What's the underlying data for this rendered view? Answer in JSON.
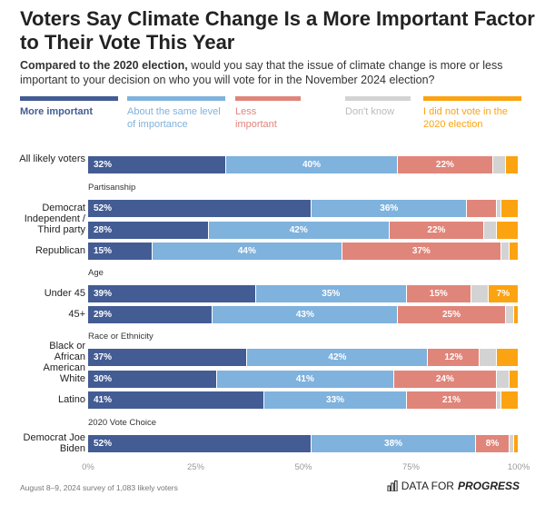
{
  "title": "Voters Say Climate Change Is a More Important Factor to Their Vote This Year",
  "subtitle_bold": "Compared to the 2020 election,",
  "subtitle_rest": " would you say that the issue of climate change is more or less important to your decision on who you will vote for in the November 2024 election?",
  "footer": "August 8–9, 2024 survey of 1,083 likely voters",
  "logo": {
    "text1": "DATA FOR",
    "text2": "PROGRESS",
    "icon": "bar-chart-icon"
  },
  "chart_data": {
    "type": "bar",
    "orientation": "horizontal",
    "stacked": true,
    "title": "Voters Say Climate Change Is a More Important Factor to Their Vote This Year",
    "xlim": [
      0,
      100
    ],
    "xticks": [
      "0%",
      "25%",
      "50%",
      "75%",
      "100%"
    ],
    "legend_position": "top",
    "series": [
      {
        "name": "More important",
        "color": "#435c94"
      },
      {
        "name": "About the same level of importance",
        "color": "#7fb2dd"
      },
      {
        "name": "Less important",
        "color": "#e0857a"
      },
      {
        "name": "Don't know",
        "color": "#d3d3d3"
      },
      {
        "name": "I did not vote in the 2020 election",
        "color": "#fca311"
      }
    ],
    "rows": [
      {
        "group": null,
        "label": "All likely voters",
        "values": [
          32,
          40,
          22,
          3,
          3
        ],
        "labels": [
          "32%",
          "40%",
          "22%",
          "",
          ""
        ]
      },
      {
        "group": "Partisanship",
        "label": "Democrat",
        "values": [
          52,
          36,
          7,
          1,
          4
        ],
        "labels": [
          "52%",
          "36%",
          "",
          "",
          ""
        ]
      },
      {
        "group": null,
        "label": "Independent / Third party",
        "values": [
          28,
          42,
          22,
          3,
          5
        ],
        "labels": [
          "28%",
          "42%",
          "22%",
          "",
          ""
        ]
      },
      {
        "group": null,
        "label": "Republican",
        "values": [
          15,
          44,
          37,
          2,
          2
        ],
        "labels": [
          "15%",
          "44%",
          "37%",
          "",
          ""
        ]
      },
      {
        "group": "Age",
        "label": "Under 45",
        "values": [
          39,
          35,
          15,
          4,
          7
        ],
        "labels": [
          "39%",
          "35%",
          "15%",
          "",
          "7%"
        ]
      },
      {
        "group": null,
        "label": "45+",
        "values": [
          29,
          43,
          25,
          2,
          1
        ],
        "labels": [
          "29%",
          "43%",
          "25%",
          "",
          ""
        ]
      },
      {
        "group": "Race or Ethnicity",
        "label": "Black or African American",
        "values": [
          37,
          42,
          12,
          4,
          5
        ],
        "labels": [
          "37%",
          "42%",
          "12%",
          "",
          ""
        ]
      },
      {
        "group": null,
        "label": "White",
        "values": [
          30,
          41,
          24,
          3,
          2
        ],
        "labels": [
          "30%",
          "41%",
          "24%",
          "",
          ""
        ]
      },
      {
        "group": null,
        "label": "Latino",
        "values": [
          41,
          33,
          21,
          1,
          4
        ],
        "labels": [
          "41%",
          "33%",
          "21%",
          "",
          ""
        ]
      },
      {
        "group": "2020 Vote Choice",
        "label": "Democrat Joe Biden",
        "values": [
          52,
          38,
          8,
          1,
          1
        ],
        "labels": [
          "52%",
          "38%",
          "8%",
          "",
          ""
        ]
      }
    ]
  }
}
